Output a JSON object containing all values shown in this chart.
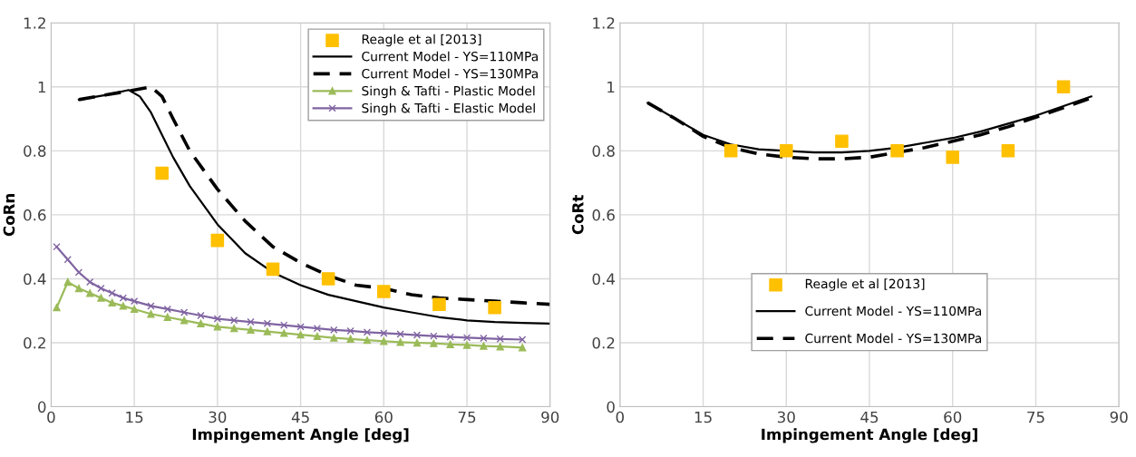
{
  "chart_data": [
    {
      "type": "line",
      "xlabel": "Impingement Angle [deg]",
      "ylabel": "CoRn",
      "xlim": [
        0,
        90
      ],
      "ylim": [
        0,
        1.2
      ],
      "xticks": [
        0,
        15,
        30,
        45,
        60,
        75,
        90
      ],
      "yticks": [
        0,
        0.2,
        0.4,
        0.6,
        0.8,
        1,
        1.2
      ],
      "grid": true,
      "legend": "top right",
      "series": [
        {
          "name": "Reagle et al [2013]",
          "type": "scatter",
          "marker": "square",
          "color": "#ffc000",
          "x": [
            20,
            30,
            40,
            50,
            60,
            70,
            80
          ],
          "values": [
            0.73,
            0.52,
            0.43,
            0.4,
            0.36,
            0.32,
            0.31
          ]
        },
        {
          "name": "Current Model - YS=110MPa",
          "line_style": "solid",
          "color": "#000000",
          "x": [
            5,
            10,
            14,
            16,
            18,
            20,
            22,
            25,
            30,
            35,
            40,
            45,
            50,
            55,
            60,
            65,
            70,
            75,
            80,
            85,
            90
          ],
          "values": [
            0.96,
            0.975,
            0.99,
            0.97,
            0.92,
            0.85,
            0.78,
            0.69,
            0.57,
            0.48,
            0.42,
            0.38,
            0.35,
            0.33,
            0.31,
            0.295,
            0.28,
            0.27,
            0.265,
            0.262,
            0.26
          ]
        },
        {
          "name": "Current Model - YS=130MPa",
          "line_style": "dashed",
          "color": "#000000",
          "x": [
            5,
            10,
            15,
            18,
            20,
            22,
            25,
            30,
            35,
            40,
            45,
            50,
            55,
            60,
            65,
            70,
            75,
            80,
            85,
            90
          ],
          "values": [
            0.96,
            0.975,
            0.99,
            1.0,
            0.97,
            0.9,
            0.8,
            0.68,
            0.58,
            0.5,
            0.45,
            0.41,
            0.38,
            0.37,
            0.35,
            0.34,
            0.335,
            0.33,
            0.325,
            0.32
          ]
        },
        {
          "name": "Singh & Tafti - Plastic Model",
          "line_style": "solid",
          "marker": "triangle",
          "color": "#9bbb59",
          "x": [
            1,
            3,
            5,
            7,
            9,
            11,
            13,
            15,
            18,
            21,
            24,
            27,
            30,
            33,
            36,
            39,
            42,
            45,
            48,
            51,
            54,
            57,
            60,
            63,
            66,
            69,
            72,
            75,
            78,
            81,
            85
          ],
          "values": [
            0.31,
            0.39,
            0.37,
            0.355,
            0.34,
            0.325,
            0.315,
            0.305,
            0.29,
            0.28,
            0.27,
            0.26,
            0.25,
            0.245,
            0.24,
            0.235,
            0.23,
            0.225,
            0.22,
            0.215,
            0.212,
            0.208,
            0.205,
            0.202,
            0.2,
            0.198,
            0.195,
            0.193,
            0.19,
            0.188,
            0.185
          ]
        },
        {
          "name": "Singh & Tafti - Elastic Model",
          "line_style": "solid",
          "marker": "cross",
          "color": "#8064a2",
          "x": [
            1,
            3,
            5,
            7,
            9,
            11,
            13,
            15,
            18,
            21,
            24,
            27,
            30,
            33,
            36,
            39,
            42,
            45,
            48,
            51,
            54,
            57,
            60,
            63,
            66,
            69,
            72,
            75,
            78,
            81,
            85
          ],
          "values": [
            0.5,
            0.46,
            0.42,
            0.39,
            0.37,
            0.355,
            0.34,
            0.33,
            0.315,
            0.305,
            0.295,
            0.285,
            0.275,
            0.27,
            0.265,
            0.26,
            0.255,
            0.25,
            0.245,
            0.24,
            0.237,
            0.233,
            0.23,
            0.227,
            0.224,
            0.221,
            0.218,
            0.216,
            0.214,
            0.212,
            0.21
          ]
        }
      ]
    },
    {
      "type": "line",
      "xlabel": "Impingement Angle [deg]",
      "ylabel": "CoRt",
      "xlim": [
        0,
        90
      ],
      "ylim": [
        0,
        1.2
      ],
      "xticks": [
        0,
        15,
        30,
        45,
        60,
        75,
        90
      ],
      "yticks": [
        0,
        0.2,
        0.4,
        0.6,
        0.8,
        1,
        1.2
      ],
      "grid": true,
      "legend": "bottom",
      "series": [
        {
          "name": "Reagle et al [2013]",
          "type": "scatter",
          "marker": "square",
          "color": "#ffc000",
          "x": [
            20,
            30,
            40,
            50,
            60,
            70,
            80
          ],
          "values": [
            0.8,
            0.8,
            0.83,
            0.8,
            0.78,
            0.8,
            1.0
          ]
        },
        {
          "name": "Current Model - YS=110MPa",
          "line_style": "solid",
          "color": "#000000",
          "x": [
            5,
            10,
            15,
            20,
            25,
            30,
            35,
            40,
            45,
            50,
            55,
            60,
            65,
            70,
            75,
            80,
            85
          ],
          "values": [
            0.95,
            0.9,
            0.85,
            0.82,
            0.805,
            0.8,
            0.795,
            0.795,
            0.8,
            0.81,
            0.825,
            0.84,
            0.86,
            0.885,
            0.91,
            0.94,
            0.97
          ]
        },
        {
          "name": "Current Model - YS=130MPa",
          "line_style": "dashed",
          "color": "#000000",
          "x": [
            5,
            10,
            15,
            20,
            25,
            30,
            35,
            40,
            45,
            50,
            55,
            60,
            65,
            70,
            75,
            80,
            85
          ],
          "values": [
            0.95,
            0.9,
            0.845,
            0.81,
            0.79,
            0.78,
            0.775,
            0.775,
            0.78,
            0.795,
            0.81,
            0.83,
            0.85,
            0.875,
            0.905,
            0.935,
            0.965
          ]
        }
      ]
    }
  ]
}
